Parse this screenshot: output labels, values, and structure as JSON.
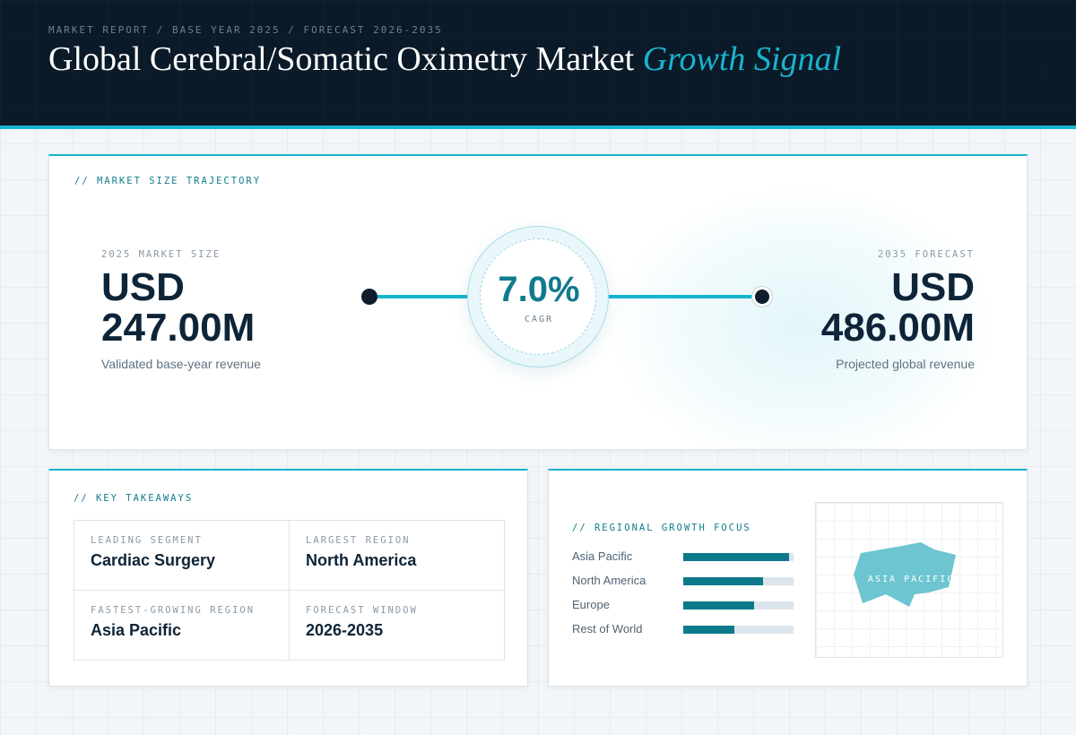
{
  "header": {
    "eyebrow": "MARKET REPORT / BASE YEAR 2025 / FORECAST 2026-2035",
    "title_main": "Global Cerebral/Somatic Oximetry Market ",
    "title_accent": "Growth Signal"
  },
  "trajectory": {
    "section_label": "// MARKET SIZE TRAJECTORY",
    "start": {
      "label": "2025 MARKET SIZE",
      "value_line1": "USD",
      "value_line2": "247.00M",
      "caption": "Validated base-year revenue"
    },
    "cagr": {
      "value": "7.0%",
      "label": "CAGR"
    },
    "end": {
      "label": "2035 FORECAST",
      "value_line1": "USD",
      "value_line2": "486.00M",
      "caption": "Projected global revenue"
    }
  },
  "takeaways": {
    "section_label": "// KEY TAKEAWAYS",
    "items": [
      {
        "key": "LEADING SEGMENT",
        "value": "Cardiac Surgery"
      },
      {
        "key": "LARGEST REGION",
        "value": "North America"
      },
      {
        "key": "FASTEST-GROWING REGION",
        "value": "Asia Pacific"
      },
      {
        "key": "FORECAST WINDOW",
        "value": "2026-2035"
      }
    ]
  },
  "regional": {
    "section_label": "// REGIONAL GROWTH FOCUS",
    "bars": [
      {
        "name": "Asia Pacific",
        "level": 0.96
      },
      {
        "name": "North America",
        "level": 0.72
      },
      {
        "name": "Europe",
        "level": 0.64
      },
      {
        "name": "Rest of World",
        "level": 0.46
      }
    ],
    "map_label": "ASIA PACIFIC",
    "map_color": "#6dc5d1"
  },
  "colors": {
    "accent": "#16b4cf",
    "accent_dark": "#107b8e",
    "header_bg": "#0b1a28",
    "ink": "#0e2438"
  }
}
